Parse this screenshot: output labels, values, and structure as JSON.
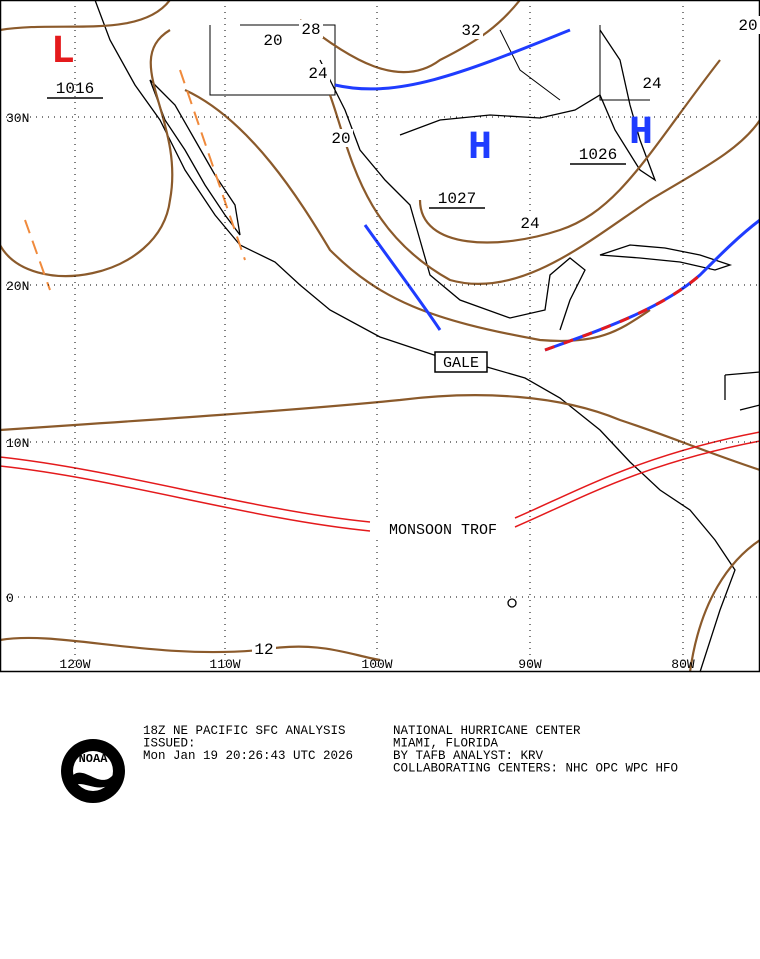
{
  "map": {
    "lat_labels": [
      "30N",
      "20N",
      "10N",
      "0"
    ],
    "lon_labels": [
      "120W",
      "110W",
      "100W",
      "90W",
      "80W"
    ],
    "isobar_labels": [
      "28",
      "32",
      "20",
      "20",
      "24",
      "24",
      "20",
      "24",
      "12"
    ],
    "pressure_centers": [
      {
        "symbol": "L",
        "value": "1016"
      },
      {
        "symbol": "H",
        "value": "1027"
      },
      {
        "symbol": "H",
        "value": "1026"
      }
    ],
    "features": [
      "MONSOON TROF",
      "GALE"
    ]
  },
  "footer": {
    "left": [
      "18Z NE PACIFIC SFC ANALYSIS",
      "ISSUED:",
      " Mon Jan 19 20:26:43 UTC 2026"
    ],
    "right": [
      "NATIONAL HURRICANE CENTER",
      "MIAMI, FLORIDA",
      "BY TAFB ANALYST: KRV",
      "COLLABORATING CENTERS: NHC OPC WPC HFO"
    ],
    "logo": "NOAA"
  }
}
